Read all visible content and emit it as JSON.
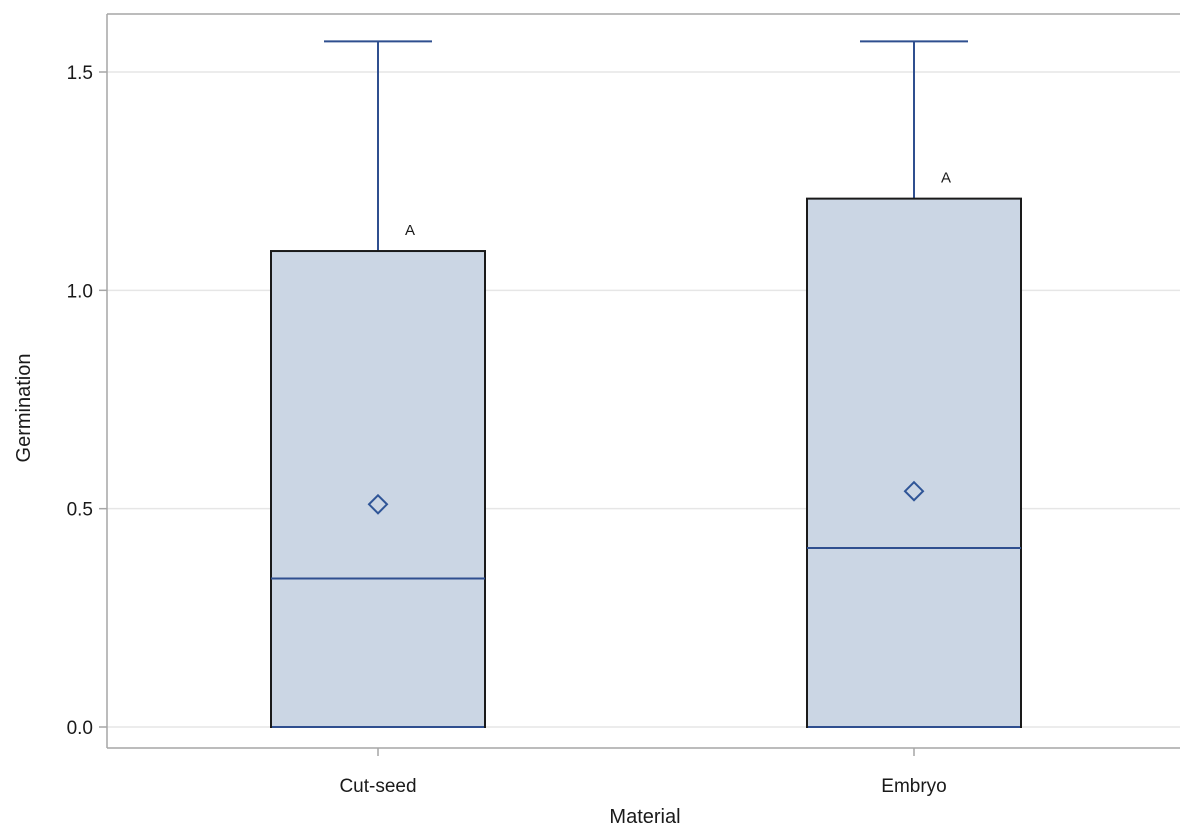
{
  "chart_data": {
    "type": "box",
    "xlabel": "Material",
    "ylabel": "Germination",
    "ylim": [
      -0.04,
      1.64
    ],
    "yticks": [
      0.0,
      0.5,
      1.0,
      1.5
    ],
    "ytick_labels": [
      "0.0",
      "0.5",
      "1.0",
      "1.5"
    ],
    "categories": [
      "Cut-seed",
      "Embryo"
    ],
    "boxes": [
      {
        "category": "Cut-seed",
        "min": 0.0,
        "q1": 0.0,
        "median": 0.34,
        "q3": 1.09,
        "max": 1.57,
        "mean": 0.51,
        "group_label": "A"
      },
      {
        "category": "Embryo",
        "min": 0.0,
        "q1": 0.0,
        "median": 0.41,
        "q3": 1.21,
        "max": 1.57,
        "mean": 0.54,
        "group_label": "A"
      }
    ],
    "grid": true,
    "colors": {
      "box_fill": "#cbd6e4",
      "box_edge": "#1a1a1a",
      "whisker": "#2f4f8f",
      "median": "#2f4f8f",
      "mean_marker": "#2f5597",
      "grid": "#e6e6e6",
      "axis": "#a6a6a6"
    }
  }
}
